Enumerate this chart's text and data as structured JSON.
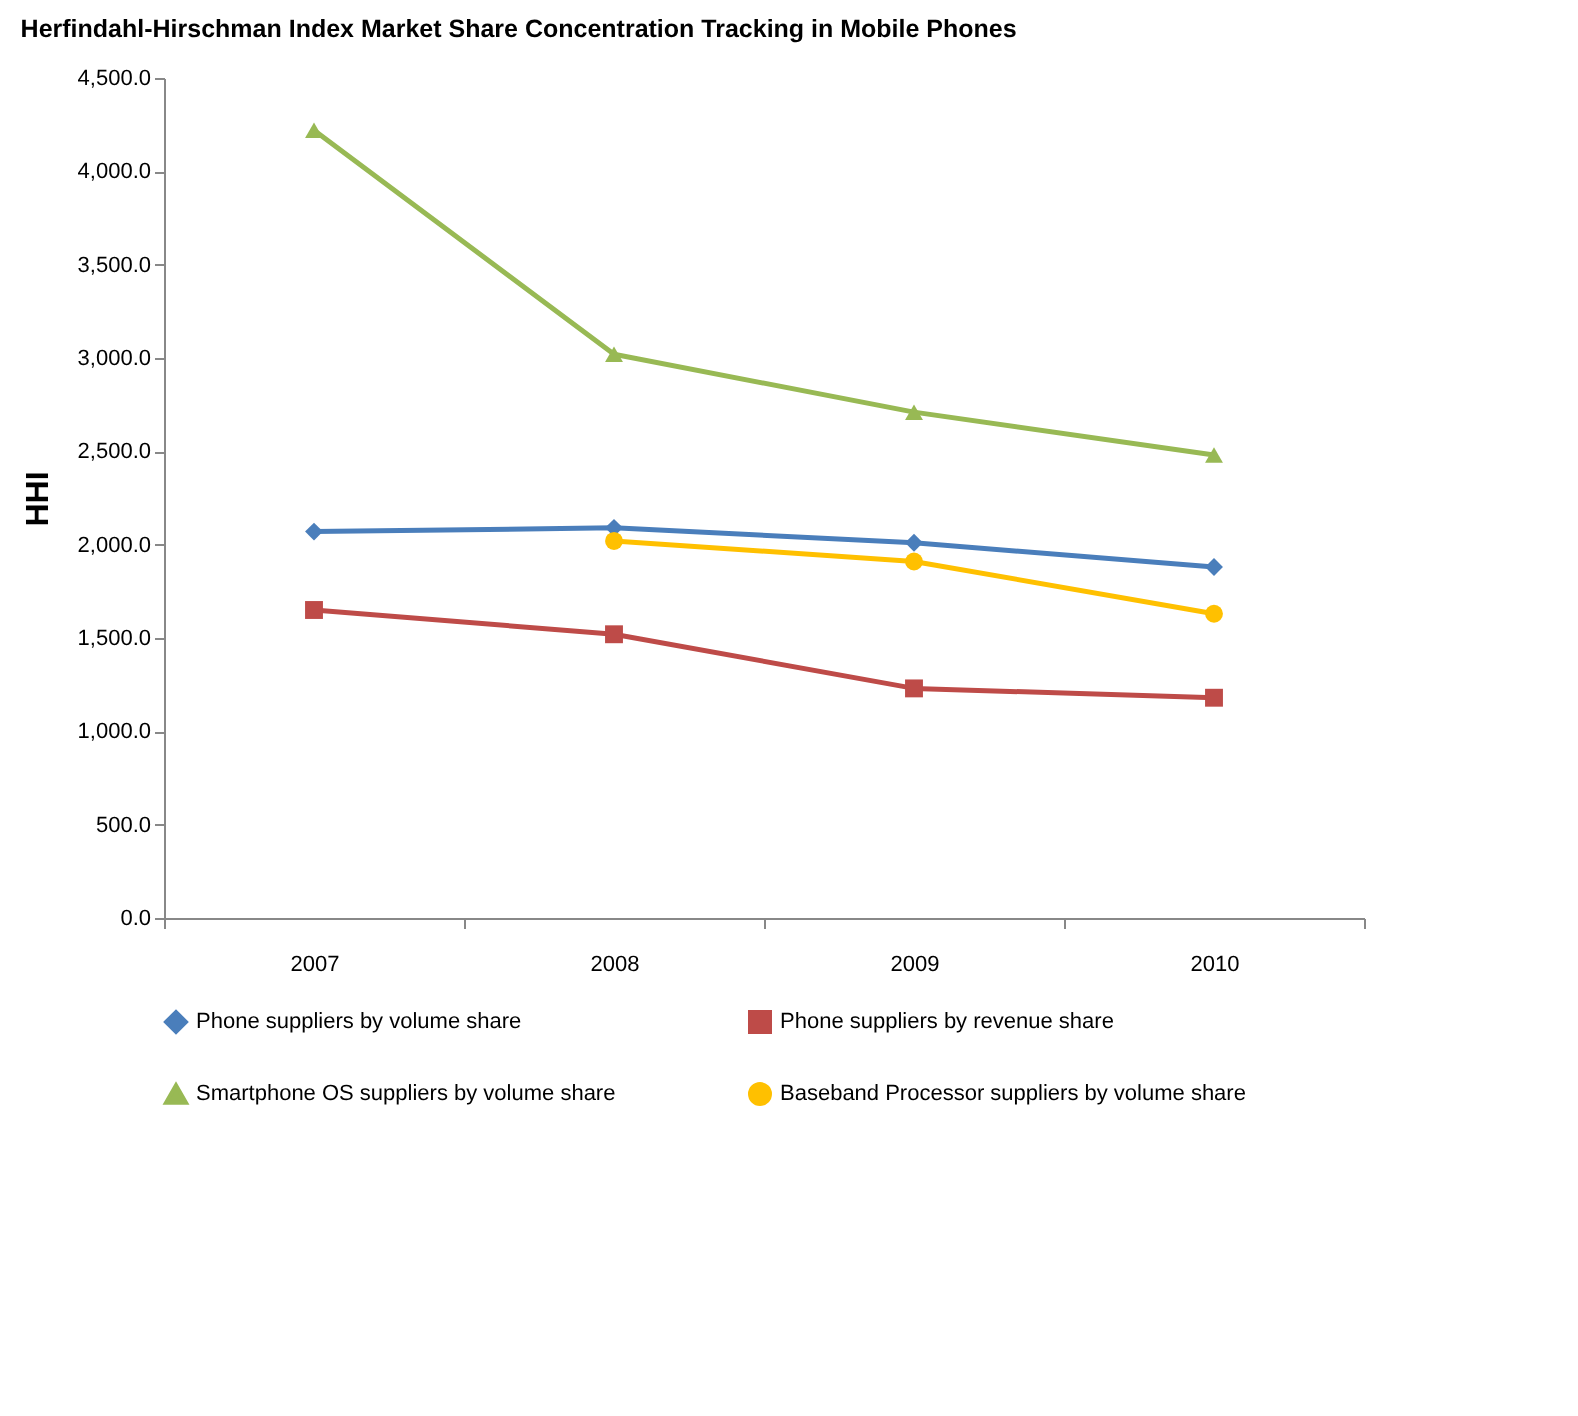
{
  "chart_data": {
    "type": "line",
    "title": "Herfindahl-Hirschman Index Market  Share Concentration Tracking in Mobile Phones",
    "ylabel": "HHI",
    "categories": [
      "2007",
      "2008",
      "2009",
      "2010"
    ],
    "series": [
      {
        "name": "Phone suppliers by volume share",
        "color": "#4a7ebb",
        "marker": "diamond",
        "values": [
          2070,
          2090,
          2010,
          1880
        ]
      },
      {
        "name": "Phone suppliers by revenue share",
        "color": "#be4b48",
        "marker": "square",
        "values": [
          1650,
          1520,
          1230,
          1180
        ]
      },
      {
        "name": "Smartphone OS suppliers  by volume share",
        "color": "#98b954",
        "marker": "triangle",
        "values": [
          4220,
          3020,
          2710,
          2480
        ]
      },
      {
        "name": "Baseband Processor suppliers by volume share",
        "color": "#ffc000",
        "marker": "circle",
        "values": [
          null,
          2020,
          1910,
          1630
        ]
      }
    ],
    "ylim": [
      0,
      4500
    ],
    "yticks": [
      {
        "value": 0,
        "label": "0.0"
      },
      {
        "value": 500,
        "label": "500.0"
      },
      {
        "value": 1000,
        "label": "1,000.0"
      },
      {
        "value": 1500,
        "label": "1,500.0"
      },
      {
        "value": 2000,
        "label": "2,000.0"
      },
      {
        "value": 2500,
        "label": "2,500.0"
      },
      {
        "value": 3000,
        "label": "3,000.0"
      },
      {
        "value": 3500,
        "label": "3,500.0"
      },
      {
        "value": 4000,
        "label": "4,000.0"
      },
      {
        "value": 4500,
        "label": "4,500.0"
      }
    ],
    "grid": false,
    "legend": "bottom",
    "line_style": "solid"
  }
}
